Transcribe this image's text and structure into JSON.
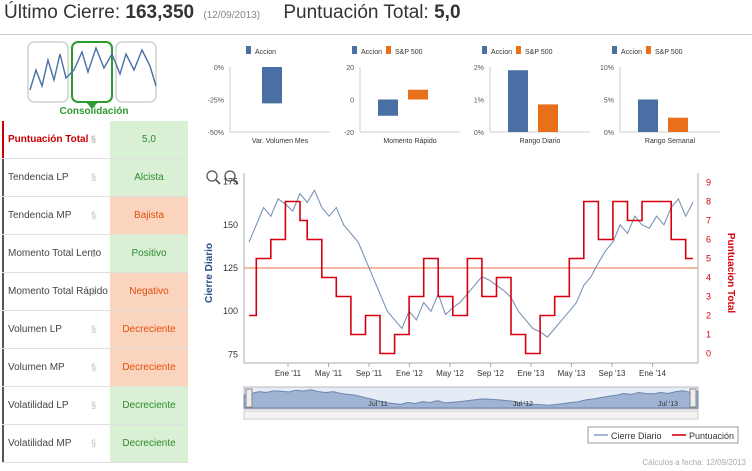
{
  "header": {
    "close_label": "Último Cierre:",
    "close_value": "163,350",
    "close_date": "(12/09/2013)",
    "score_label": "Puntuación Total:",
    "score_value": "5,0"
  },
  "thumbnail": {
    "label": "Consolidación"
  },
  "rows": [
    {
      "label": "Puntuación Total",
      "value": "5,0",
      "tone": "g",
      "highlight": true
    },
    {
      "label": "Tendencia LP",
      "value": "Alcista",
      "tone": "g"
    },
    {
      "label": "Tendencia MP",
      "value": "Bajista",
      "tone": "o"
    },
    {
      "label": "Momento Total Lento",
      "value": "Positivo",
      "tone": "g"
    },
    {
      "label": "Momento Total Rápido",
      "value": "Negativo",
      "tone": "o"
    },
    {
      "label": "Volumen LP",
      "value": "Decreciente",
      "tone": "o"
    },
    {
      "label": "Volumen MP",
      "value": "Decreciente",
      "tone": "o"
    },
    {
      "label": "Volatilidad LP",
      "value": "Decreciente",
      "tone": "g"
    },
    {
      "label": "Volatilidad MP",
      "value": "Decreciente",
      "tone": "g"
    }
  ],
  "colors": {
    "accion": "#4a6fa5",
    "sp500": "#e8701a",
    "line": "#7a93b8",
    "score": "#d8000f",
    "hline": "#f2a080"
  },
  "chart_data": [
    {
      "type": "bar",
      "title": "Var. Volumen Mes",
      "legend": [
        "Accion"
      ],
      "categories": [
        "Accion"
      ],
      "values": [
        -28
      ],
      "ylim": [
        -50,
        0
      ],
      "yticks": [
        "0%",
        "-25%",
        "-50%"
      ]
    },
    {
      "type": "bar",
      "title": "Momento Rápido",
      "legend": [
        "Accion",
        "S&P 500"
      ],
      "categories": [
        "Accion",
        "S&P 500"
      ],
      "values": [
        -10,
        6
      ],
      "ylim": [
        -20,
        20
      ],
      "yticks": [
        "20",
        "0",
        "-20"
      ]
    },
    {
      "type": "bar",
      "title": "Rango Diario",
      "legend": [
        "Accion",
        "S&P 500"
      ],
      "categories": [
        "Accion",
        "S&P 500"
      ],
      "values": [
        1.9,
        0.85
      ],
      "ylim": [
        0,
        2
      ],
      "yticks": [
        "2%",
        "1%",
        "0%"
      ]
    },
    {
      "type": "bar",
      "title": "Rango Semanal",
      "legend": [
        "Accion",
        "S&P 500"
      ],
      "categories": [
        "Accion",
        "S&P 500"
      ],
      "values": [
        5,
        2.2
      ],
      "ylim": [
        0,
        10
      ],
      "yticks": [
        "10%",
        "5%",
        "0%"
      ]
    },
    {
      "type": "line",
      "title": "",
      "ylabel": "Cierre Diario",
      "y2label": "Puntuacion Total",
      "ylim": [
        70,
        180
      ],
      "y2lim": [
        -0.5,
        9.5
      ],
      "yticks": [
        "75",
        "100",
        "125",
        "150",
        "175"
      ],
      "y2ticks": [
        "0",
        "1",
        "2",
        "3",
        "4",
        "5",
        "6",
        "7",
        "8",
        "9"
      ],
      "xticks": [
        "Ene '11",
        "May '11",
        "Sep '11",
        "Ene '12",
        "May '12",
        "Sep '12",
        "Ene '13",
        "May '13",
        "Sep '13",
        "Ene '14"
      ],
      "reference_line": 125,
      "navigator_labels": [
        "Jul '11",
        "Jul '12",
        "Jul '13"
      ],
      "series": [
        {
          "name": "Cierre Diario",
          "values": [
            140,
            150,
            160,
            155,
            165,
            162,
            158,
            168,
            163,
            170,
            160,
            155,
            160,
            150,
            145,
            140,
            130,
            120,
            110,
            100,
            95,
            90,
            100,
            95,
            105,
            100,
            110,
            98,
            102,
            105,
            110,
            115,
            120,
            118,
            115,
            112,
            108,
            100,
            95,
            90,
            88,
            85,
            90,
            95,
            100,
            105,
            115,
            120,
            128,
            135,
            140,
            150,
            145,
            155,
            150,
            148,
            155,
            150,
            160,
            165,
            155,
            163
          ]
        },
        {
          "name": "Puntuación",
          "values": [
            2,
            5,
            5,
            6,
            6,
            8,
            8,
            7,
            6,
            6,
            4,
            4,
            3,
            3,
            1,
            1,
            2,
            2,
            0,
            0,
            1,
            1,
            3,
            3,
            5,
            5,
            3,
            3,
            2,
            2,
            5,
            5,
            3,
            3,
            4,
            4,
            1,
            1,
            0,
            0,
            2,
            2,
            3,
            3,
            5,
            5,
            8,
            8,
            6,
            6,
            8,
            8,
            7,
            7,
            8,
            8,
            8,
            8,
            6,
            6,
            5,
            5
          ]
        }
      ]
    }
  ],
  "big_legend": {
    "a": "Cierre Diario",
    "b": "Puntuación"
  },
  "footer": "Cálculos a fecha: 12/09/2013"
}
